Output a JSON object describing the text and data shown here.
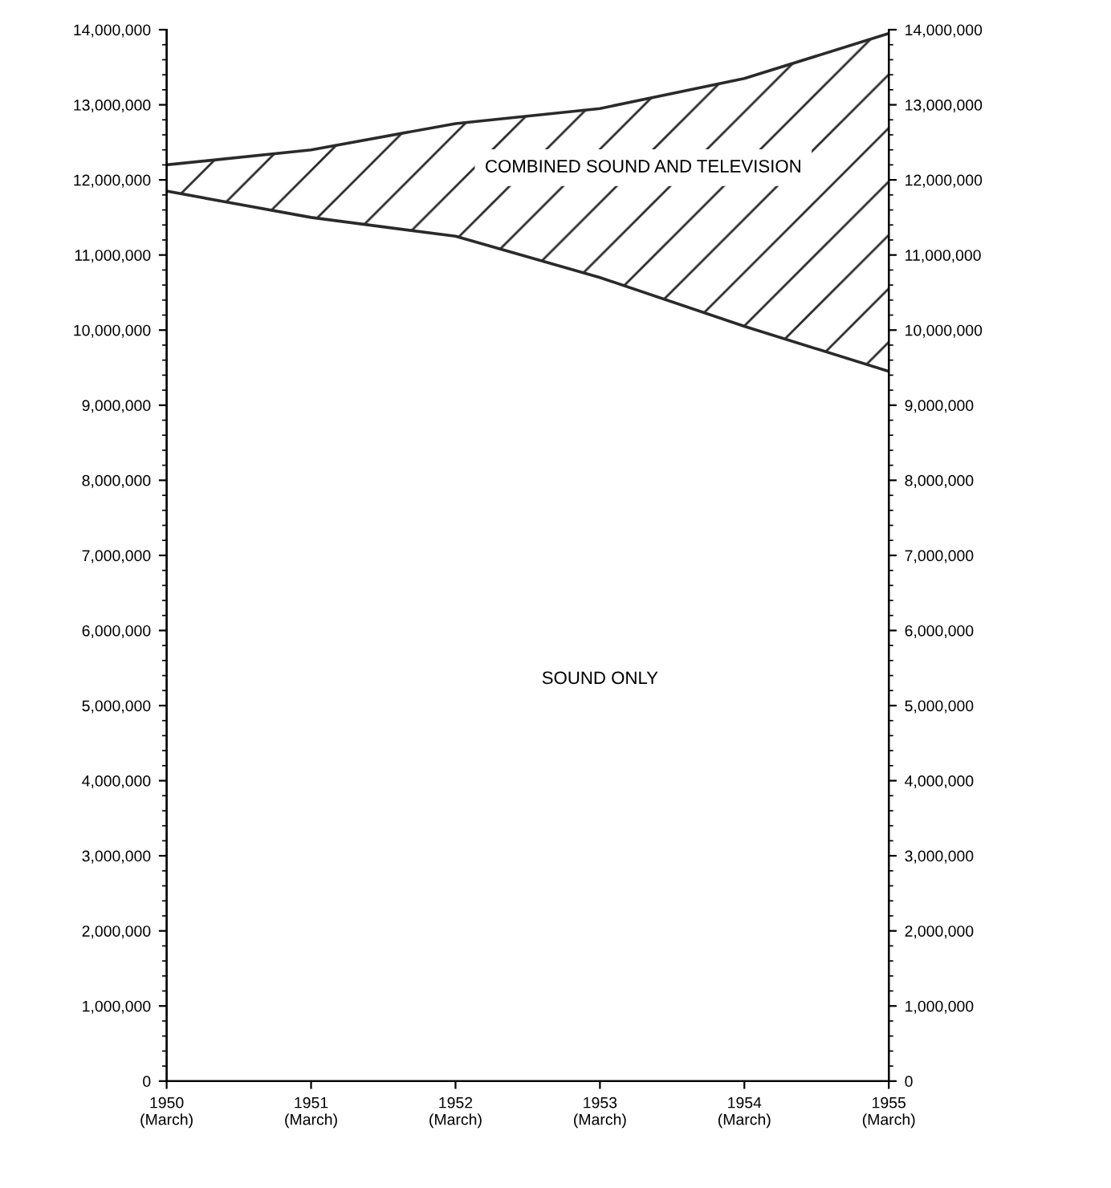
{
  "chart_data": {
    "type": "area",
    "stacked": true,
    "categories": [
      "1950\n(March)",
      "1951\n(March)",
      "1952\n(March)",
      "1953\n(March)",
      "1954\n(March)",
      "1955\n(March)"
    ],
    "series": [
      {
        "name": "SOUND ONLY",
        "color": "#ffffff",
        "values": [
          11850000,
          11500000,
          11250000,
          10700000,
          10050000,
          9450000
        ]
      },
      {
        "name": "COMBINED SOUND AND TELEVISION",
        "color": "#2a2a2a",
        "values": [
          350000,
          900000,
          1500000,
          2250000,
          3300000,
          4500000
        ]
      }
    ],
    "ylim": [
      0,
      14000000
    ],
    "yticks": [
      {
        "value": 0,
        "label": "0"
      },
      {
        "value": 1000000,
        "label": "1,000,000"
      },
      {
        "value": 2000000,
        "label": "2,000,000"
      },
      {
        "value": 3000000,
        "label": "3,000,000"
      },
      {
        "value": 4000000,
        "label": "4,000,000"
      },
      {
        "value": 5000000,
        "label": "5,000,000"
      },
      {
        "value": 6000000,
        "label": "6,000,000"
      },
      {
        "value": 7000000,
        "label": "7,000,000"
      },
      {
        "value": 8000000,
        "label": "8,000,000"
      },
      {
        "value": 9000000,
        "label": "9,000,000"
      },
      {
        "value": 10000000,
        "label": "10,000,000"
      },
      {
        "value": 11000000,
        "label": "11,000,000"
      },
      {
        "value": 12000000,
        "label": "12,000,000"
      },
      {
        "value": 13000000,
        "label": "13,000,000"
      },
      {
        "value": 14000000,
        "label": "14,000,000"
      }
    ],
    "y2lim": [
      0,
      14000000
    ],
    "y2ticks": [
      {
        "value": 0,
        "label": "0"
      },
      {
        "value": 1000000,
        "label": "1,000,000"
      },
      {
        "value": 2000000,
        "label": "2,000,000"
      },
      {
        "value": 3000000,
        "label": "3,000,000"
      },
      {
        "value": 4000000,
        "label": "4,000,000"
      },
      {
        "value": 5000000,
        "label": "5,000,000"
      },
      {
        "value": 6000000,
        "label": "6,000,000"
      },
      {
        "value": 7000000,
        "label": "7,000,000"
      },
      {
        "value": 8000000,
        "label": "8,000,000"
      },
      {
        "value": 9000000,
        "label": "9,000,000"
      },
      {
        "value": 10000000,
        "label": "10,000,000"
      },
      {
        "value": 11000000,
        "label": "11,000,000"
      },
      {
        "value": 12000000,
        "label": "12,000,000"
      },
      {
        "value": 13000000,
        "label": "13,000,000"
      },
      {
        "value": 14000000,
        "label": "14,000,000"
      }
    ],
    "grid": false,
    "legend": false
  }
}
